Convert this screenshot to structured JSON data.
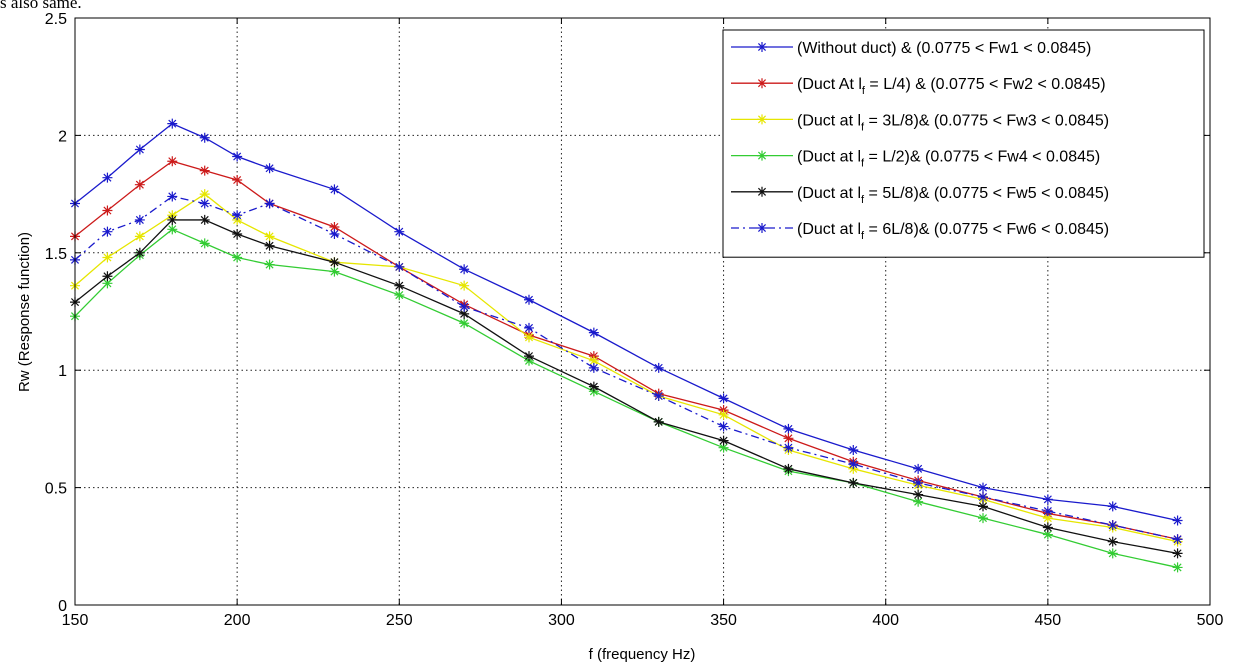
{
  "page_text": {
    "stray_caption": "s also same."
  },
  "chart_data": {
    "type": "line",
    "title": "",
    "xlabel": "f (frequency Hz)",
    "ylabel": "Rw (Response function)",
    "xlim": [
      150,
      500
    ],
    "ylim": [
      0,
      2.5
    ],
    "xticks": [
      150,
      200,
      250,
      300,
      350,
      400,
      450,
      500
    ],
    "xtick_labels": [
      "150",
      "200",
      "250",
      "300",
      "350",
      "400",
      "450",
      "500"
    ],
    "yticks": [
      0,
      0.5,
      1,
      1.5,
      2,
      2.5
    ],
    "ytick_labels": [
      "0",
      "0.5",
      "1",
      "1.5",
      "2",
      "2.5"
    ],
    "grid": true,
    "legend_position": "top-right",
    "x": [
      150,
      160,
      170,
      180,
      190,
      200,
      210,
      230,
      250,
      270,
      290,
      310,
      330,
      350,
      370,
      390,
      410,
      430,
      450,
      470,
      490
    ],
    "series": [
      {
        "name": "(Without duct) & (0.0775 < Fw1 < 0.0845)",
        "legend": {
          "pre": "(Without duct) & (0.0775 < Fw1 < 0.0845)",
          "sub": "",
          "post": ""
        },
        "color": "#1a1acc",
        "dash": "solid",
        "marker": "star",
        "values": [
          1.71,
          1.82,
          1.94,
          2.05,
          1.99,
          1.91,
          1.86,
          1.77,
          1.59,
          1.43,
          1.3,
          1.16,
          1.01,
          0.88,
          0.75,
          0.66,
          0.58,
          0.5,
          0.45,
          0.42,
          0.36
        ]
      },
      {
        "name": "(Duct At lf = L/4) & (0.0775 < Fw2 < 0.0845)",
        "legend": {
          "pre": "(Duct At l",
          "sub": "f",
          "post": " = L/4) & (0.0775 < Fw2 < 0.0845)"
        },
        "color": "#cc1a1a",
        "dash": "solid",
        "marker": "star",
        "values": [
          1.57,
          1.68,
          1.79,
          1.89,
          1.85,
          1.81,
          1.71,
          1.61,
          1.44,
          1.28,
          1.15,
          1.06,
          0.9,
          0.83,
          0.71,
          0.61,
          0.53,
          0.46,
          0.39,
          0.34,
          0.28
        ]
      },
      {
        "name": "(Duct at lf = 3L/8)& (0.0775 < Fw3 < 0.0845)",
        "legend": {
          "pre": "(Duct at l",
          "sub": "f",
          "post": " = 3L/8)& (0.0775 < Fw3 < 0.0845)"
        },
        "color": "#e6e600",
        "dash": "solid",
        "marker": "star",
        "values": [
          1.36,
          1.48,
          1.57,
          1.66,
          1.75,
          1.64,
          1.57,
          1.46,
          1.44,
          1.36,
          1.14,
          1.04,
          0.89,
          0.81,
          0.66,
          0.58,
          0.51,
          0.45,
          0.37,
          0.33,
          0.27
        ]
      },
      {
        "name": "(Duct at lf = L/2)& (0.0775 < Fw4 < 0.0845)",
        "legend": {
          "pre": "(Duct at l",
          "sub": "f",
          "post": " = L/2)& (0.0775 < Fw4 < 0.0845)"
        },
        "color": "#33cc33",
        "dash": "solid",
        "marker": "star",
        "values": [
          1.23,
          1.37,
          1.49,
          1.6,
          1.54,
          1.48,
          1.45,
          1.42,
          1.32,
          1.2,
          1.04,
          0.91,
          0.78,
          0.67,
          0.57,
          0.52,
          0.44,
          0.37,
          0.3,
          0.22,
          0.16
        ]
      },
      {
        "name": "(Duct at lf = 5L/8)& (0.0775 < Fw5 < 0.0845)",
        "legend": {
          "pre": "(Duct at l",
          "sub": "f",
          "post": " = 5L/8)& (0.0775 < Fw5 < 0.0845)"
        },
        "color": "#111111",
        "dash": "solid",
        "marker": "star",
        "values": [
          1.29,
          1.4,
          1.5,
          1.64,
          1.64,
          1.58,
          1.53,
          1.46,
          1.36,
          1.24,
          1.06,
          0.93,
          0.78,
          0.7,
          0.58,
          0.52,
          0.47,
          0.42,
          0.33,
          0.27,
          0.22
        ]
      },
      {
        "name": "(Duct at lf = 6L/8)& (0.0775 < Fw6 < 0.0845)",
        "legend": {
          "pre": "(Duct at l",
          "sub": "f",
          "post": " = 6L/8)& (0.0775 < Fw6 < 0.0845)"
        },
        "color": "#1a1acc",
        "dash": "dashdot",
        "marker": "star",
        "values": [
          1.47,
          1.59,
          1.64,
          1.74,
          1.71,
          1.66,
          1.71,
          1.58,
          1.44,
          1.27,
          1.18,
          1.01,
          0.89,
          0.76,
          0.67,
          0.6,
          0.52,
          0.46,
          0.4,
          0.34,
          0.28
        ]
      }
    ]
  }
}
